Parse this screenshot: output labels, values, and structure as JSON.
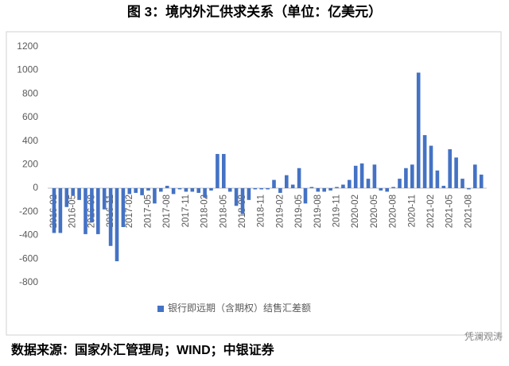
{
  "chart_data": {
    "type": "bar",
    "title": "图 3：境内外汇供求关系（单位：亿美元）",
    "source": "数据来源：国家外汇管理局；WIND；中银证券",
    "watermark": "凭澜观涛",
    "categories": [
      "2016-02",
      null,
      null,
      "2016-05",
      null,
      null,
      "2016-08",
      null,
      null,
      "2016-11",
      null,
      null,
      "2017-02",
      null,
      null,
      "2017-05",
      null,
      null,
      "2017-08",
      null,
      null,
      "2017-11",
      null,
      null,
      "2018-02",
      null,
      null,
      "2018-05",
      null,
      null,
      "2018-08",
      null,
      null,
      "2018-11",
      null,
      null,
      "2019-02",
      null,
      null,
      "2019-05",
      null,
      null,
      "2019-08",
      null,
      null,
      "2019-11",
      null,
      null,
      "2020-02",
      null,
      null,
      "2020-05",
      null,
      null,
      "2020-08",
      null,
      null,
      "2020-11",
      null,
      null,
      "2021-02",
      null,
      null,
      "2021-05",
      null,
      null,
      "2021-08",
      null,
      null
    ],
    "series": [
      {
        "name": "银行即远期（含期权）结售汇差额",
        "color": "#4472c4",
        "values": [
          -380,
          -380,
          -160,
          -60,
          -100,
          -390,
          -290,
          -390,
          -180,
          -490,
          -620,
          -330,
          -50,
          -40,
          -60,
          -20,
          -130,
          -30,
          20,
          -50,
          -10,
          -30,
          -30,
          -40,
          -80,
          -20,
          290,
          290,
          -30,
          -150,
          -220,
          -100,
          -10,
          -10,
          -10,
          70,
          -40,
          110,
          30,
          170,
          -130,
          10,
          -30,
          -30,
          -20,
          10,
          30,
          70,
          190,
          210,
          80,
          200,
          -20,
          -30,
          10,
          80,
          170,
          200,
          980,
          450,
          360,
          150,
          20,
          330,
          260,
          80,
          -10,
          200,
          115
        ]
      }
    ],
    "ylim": [
      -800,
      1200
    ],
    "yticks": [
      -800,
      -600,
      -400,
      -200,
      0,
      200,
      400,
      600,
      800,
      1000,
      1200
    ],
    "grid": false,
    "legend": "bottom"
  }
}
